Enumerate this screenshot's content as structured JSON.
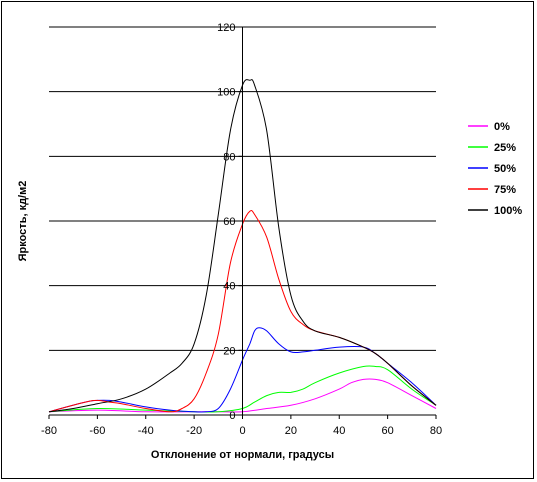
{
  "chart_data": {
    "type": "line",
    "title": "",
    "xlabel": "Отклонение от нормали, градусы",
    "ylabel": "Яркость, кд/м2",
    "xlim": [
      -80,
      80
    ],
    "ylim": [
      0,
      120
    ],
    "xticks": [
      -80,
      -60,
      -40,
      -20,
      0,
      20,
      40,
      60,
      80
    ],
    "yticks": [
      0,
      20,
      40,
      60,
      80,
      100,
      120
    ],
    "grid": "horizontal",
    "legend_position": "right",
    "series": [
      {
        "name": "0%",
        "color": "#ff00ff",
        "x": [
          -80,
          -60,
          -40,
          -20,
          -10,
          0,
          10,
          20,
          30,
          40,
          45,
          50,
          55,
          60,
          70,
          80
        ],
        "y": [
          1,
          1.5,
          1,
          1,
          1,
          1,
          2,
          3,
          5,
          8,
          10,
          11,
          11,
          10,
          6,
          2
        ]
      },
      {
        "name": "25%",
        "color": "#00ff00",
        "x": [
          -80,
          -60,
          -40,
          -20,
          -10,
          0,
          5,
          10,
          15,
          20,
          25,
          30,
          40,
          50,
          55,
          60,
          70,
          80
        ],
        "y": [
          1,
          2,
          1.5,
          1,
          1,
          2,
          4,
          6,
          7,
          7,
          8,
          10,
          13,
          15,
          15,
          14,
          8,
          3
        ]
      },
      {
        "name": "50%",
        "color": "#0000ff",
        "x": [
          -80,
          -65,
          -60,
          -55,
          -50,
          -40,
          -30,
          -20,
          -15,
          -10,
          -5,
          0,
          3,
          5,
          7,
          10,
          15,
          20,
          25,
          30,
          40,
          50,
          55,
          60,
          70,
          80
        ],
        "y": [
          1,
          4,
          4.5,
          4.5,
          4,
          2.5,
          1.5,
          1,
          1,
          2,
          8,
          17,
          22,
          26,
          27,
          26,
          22,
          19.5,
          19.5,
          20,
          21,
          21,
          19,
          16,
          10,
          3
        ]
      },
      {
        "name": "75%",
        "color": "#ff0000",
        "x": [
          -80,
          -65,
          -60,
          -55,
          -50,
          -40,
          -30,
          -25,
          -20,
          -15,
          -10,
          -5,
          0,
          3,
          5,
          10,
          15,
          20,
          25,
          30,
          40,
          50,
          55,
          60,
          70,
          80
        ],
        "y": [
          1,
          4,
          4.5,
          4,
          3.5,
          2,
          1,
          2,
          5,
          13,
          25,
          47,
          59,
          63,
          62,
          55,
          42,
          32,
          28,
          26,
          24,
          21,
          19,
          16,
          9,
          3
        ]
      },
      {
        "name": "100%",
        "color": "#000000",
        "x": [
          -80,
          -70,
          -60,
          -50,
          -40,
          -30,
          -25,
          -20,
          -15,
          -10,
          -5,
          0,
          3,
          5,
          10,
          15,
          20,
          25,
          30,
          40,
          50,
          55,
          60,
          70,
          80
        ],
        "y": [
          1,
          2,
          3.5,
          5,
          8,
          13,
          16,
          22,
          37,
          62,
          88,
          102,
          103.5,
          102,
          88,
          58,
          37,
          29,
          26,
          24,
          21,
          19,
          16,
          9,
          3
        ]
      }
    ]
  }
}
